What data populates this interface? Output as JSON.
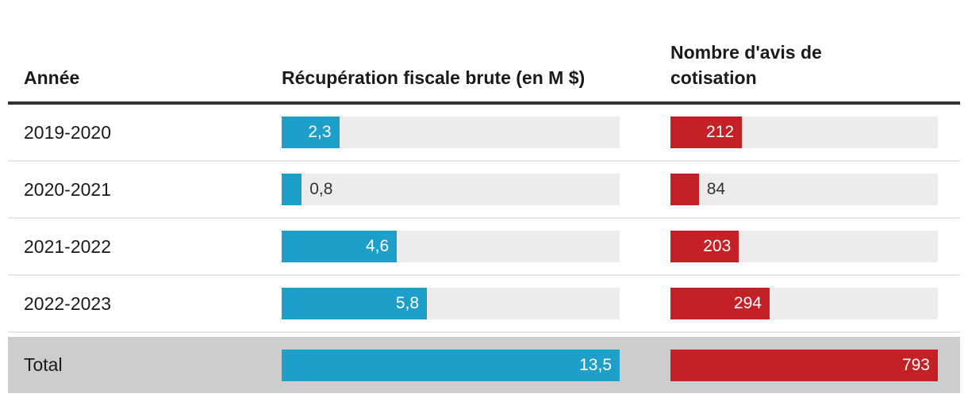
{
  "colors": {
    "bar_blue": "#1e9fc9",
    "bar_red": "#c42127",
    "bar_track": "#ececec",
    "total_row_bg": "#cdcdcd",
    "header_rule": "#333333",
    "row_separator": "#e6e6e6",
    "text_dark": "#1a1a1a",
    "bar_label_inside": "#ffffff",
    "bar_label_outside": "#333333"
  },
  "chart_data": {
    "type": "table",
    "title": "",
    "legend_position": "none",
    "columns": [
      {
        "label": "Année"
      },
      {
        "label": "Récupération fiscale brute (en M $)",
        "series_color": "#1e9fc9",
        "scale_max": 13.5
      },
      {
        "label": "Nombre d'avis de cotisation",
        "series_color": "#c42127",
        "scale_max": 793
      }
    ],
    "rows": [
      {
        "year": "2019-2020",
        "recuperation_value": 2.3,
        "recuperation_label": "2,3",
        "avis_value": 212,
        "avis_label": "212",
        "is_total": false
      },
      {
        "year": "2020-2021",
        "recuperation_value": 0.8,
        "recuperation_label": "0,8",
        "avis_value": 84,
        "avis_label": "84",
        "is_total": false
      },
      {
        "year": "2021-2022",
        "recuperation_value": 4.6,
        "recuperation_label": "4,6",
        "avis_value": 203,
        "avis_label": "203",
        "is_total": false
      },
      {
        "year": "2022-2023",
        "recuperation_value": 5.8,
        "recuperation_label": "5,8",
        "avis_value": 294,
        "avis_label": "294",
        "is_total": false
      },
      {
        "year": "Total",
        "recuperation_value": 13.5,
        "recuperation_label": "13,5",
        "avis_value": 793,
        "avis_label": "793",
        "is_total": true
      }
    ]
  }
}
